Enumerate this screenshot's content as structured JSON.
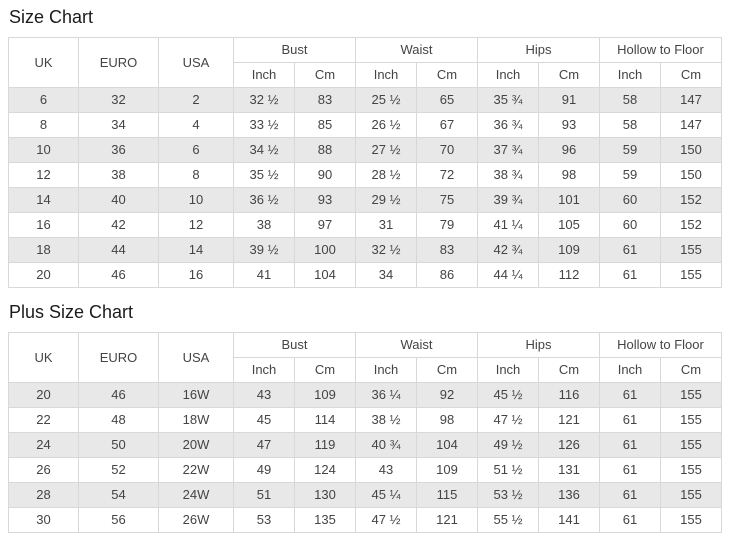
{
  "colors": {
    "row_stripe": "#e8e8e8",
    "cell_border": "#d8d8d8",
    "cell_text": "#444444",
    "title_text": "#1b1b1b"
  },
  "tables": [
    {
      "title": "Size Chart",
      "header": {
        "simple_columns": [
          "UK",
          "EURO",
          "USA"
        ],
        "group_columns": [
          {
            "label": "Bust",
            "sub": [
              "Inch",
              "Cm"
            ]
          },
          {
            "label": "Waist",
            "sub": [
              "Inch",
              "Cm"
            ]
          },
          {
            "label": "Hips",
            "sub": [
              "Inch",
              "Cm"
            ]
          },
          {
            "label": "Hollow to Floor",
            "sub": [
              "Inch",
              "Cm"
            ]
          }
        ]
      },
      "rows": [
        [
          "6",
          "32",
          "2",
          "32 ½",
          "83",
          "25 ½",
          "65",
          "35 ¾",
          "91",
          "58",
          "147"
        ],
        [
          "8",
          "34",
          "4",
          "33 ½",
          "85",
          "26 ½",
          "67",
          "36 ¾",
          "93",
          "58",
          "147"
        ],
        [
          "10",
          "36",
          "6",
          "34 ½",
          "88",
          "27 ½",
          "70",
          "37 ¾",
          "96",
          "59",
          "150"
        ],
        [
          "12",
          "38",
          "8",
          "35 ½",
          "90",
          "28 ½",
          "72",
          "38 ¾",
          "98",
          "59",
          "150"
        ],
        [
          "14",
          "40",
          "10",
          "36 ½",
          "93",
          "29 ½",
          "75",
          "39 ¾",
          "101",
          "60",
          "152"
        ],
        [
          "16",
          "42",
          "12",
          "38",
          "97",
          "31",
          "79",
          "41 ¼",
          "105",
          "60",
          "152"
        ],
        [
          "18",
          "44",
          "14",
          "39 ½",
          "100",
          "32 ½",
          "83",
          "42 ¾",
          "109",
          "61",
          "155"
        ],
        [
          "20",
          "46",
          "16",
          "41",
          "104",
          "34",
          "86",
          "44 ¼",
          "112",
          "61",
          "155"
        ]
      ]
    },
    {
      "title": "Plus Size Chart",
      "header": {
        "simple_columns": [
          "UK",
          "EURO",
          "USA"
        ],
        "group_columns": [
          {
            "label": "Bust",
            "sub": [
              "Inch",
              "Cm"
            ]
          },
          {
            "label": "Waist",
            "sub": [
              "Inch",
              "Cm"
            ]
          },
          {
            "label": "Hips",
            "sub": [
              "Inch",
              "Cm"
            ]
          },
          {
            "label": "Hollow to Floor",
            "sub": [
              "Inch",
              "Cm"
            ]
          }
        ]
      },
      "rows": [
        [
          "20",
          "46",
          "16W",
          "43",
          "109",
          "36 ¼",
          "92",
          "45 ½",
          "116",
          "61",
          "155"
        ],
        [
          "22",
          "48",
          "18W",
          "45",
          "114",
          "38 ½",
          "98",
          "47 ½",
          "121",
          "61",
          "155"
        ],
        [
          "24",
          "50",
          "20W",
          "47",
          "119",
          "40 ¾",
          "104",
          "49 ½",
          "126",
          "61",
          "155"
        ],
        [
          "26",
          "52",
          "22W",
          "49",
          "124",
          "43",
          "109",
          "51 ½",
          "131",
          "61",
          "155"
        ],
        [
          "28",
          "54",
          "24W",
          "51",
          "130",
          "45 ¼",
          "115",
          "53 ½",
          "136",
          "61",
          "155"
        ],
        [
          "30",
          "56",
          "26W",
          "53",
          "135",
          "47 ½",
          "121",
          "55 ½",
          "141",
          "61",
          "155"
        ]
      ]
    }
  ]
}
